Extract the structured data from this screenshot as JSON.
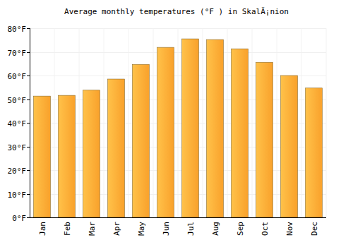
{
  "chart_data": {
    "type": "bar",
    "title": "Average monthly temperatures (°F ) in SkalÃ¡nion",
    "categories": [
      "Jan",
      "Feb",
      "Mar",
      "Apr",
      "May",
      "Jun",
      "Jul",
      "Aug",
      "Sep",
      "Oct",
      "Nov",
      "Dec"
    ],
    "values": [
      51.3,
      51.6,
      53.8,
      58.5,
      64.7,
      71.9,
      75.5,
      75.2,
      71.3,
      65.6,
      60.0,
      54.7
    ],
    "color": "#f9a12b",
    "ylim": [
      0,
      80
    ],
    "yticks": [
      {
        "value": 0,
        "label": "0°F"
      },
      {
        "value": 10,
        "label": "10°F"
      },
      {
        "value": 20,
        "label": "20°F"
      },
      {
        "value": 30,
        "label": "30°F"
      },
      {
        "value": 40,
        "label": "40°F"
      },
      {
        "value": 50,
        "label": "50°F"
      },
      {
        "value": 60,
        "label": "60°F"
      },
      {
        "value": 70,
        "label": "70°F"
      },
      {
        "value": 80,
        "label": "80°F"
      }
    ],
    "grid": true
  }
}
